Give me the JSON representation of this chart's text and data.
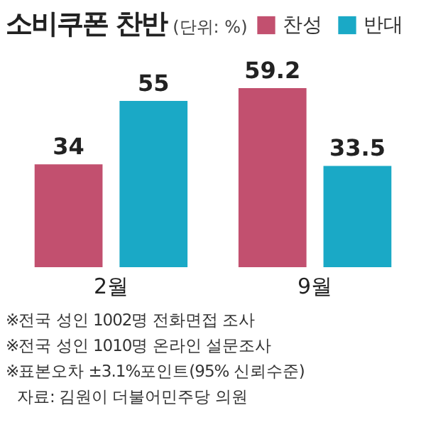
{
  "chart_data": {
    "type": "bar",
    "title": "소비쿠폰 찬반",
    "subtitle": "(단위: %)",
    "categories": [
      "2월",
      "9월"
    ],
    "series": [
      {
        "name": "찬성",
        "color": "#c2506f",
        "values": [
          34,
          59.2
        ]
      },
      {
        "name": "반대",
        "color": "#1aa9c6",
        "values": [
          55,
          33.5
        ]
      }
    ],
    "data_labels": true,
    "legend": "top right",
    "grid": false,
    "annotations": [
      "※전국 성인 1002명 전화면접 조사",
      "※전국 성인 1010명 온라인 설문조사",
      "※표본오차 ±3.1%포인트(95% 신뢰수준)",
      "자료: 김원이 더불어민주당 의원"
    ]
  }
}
